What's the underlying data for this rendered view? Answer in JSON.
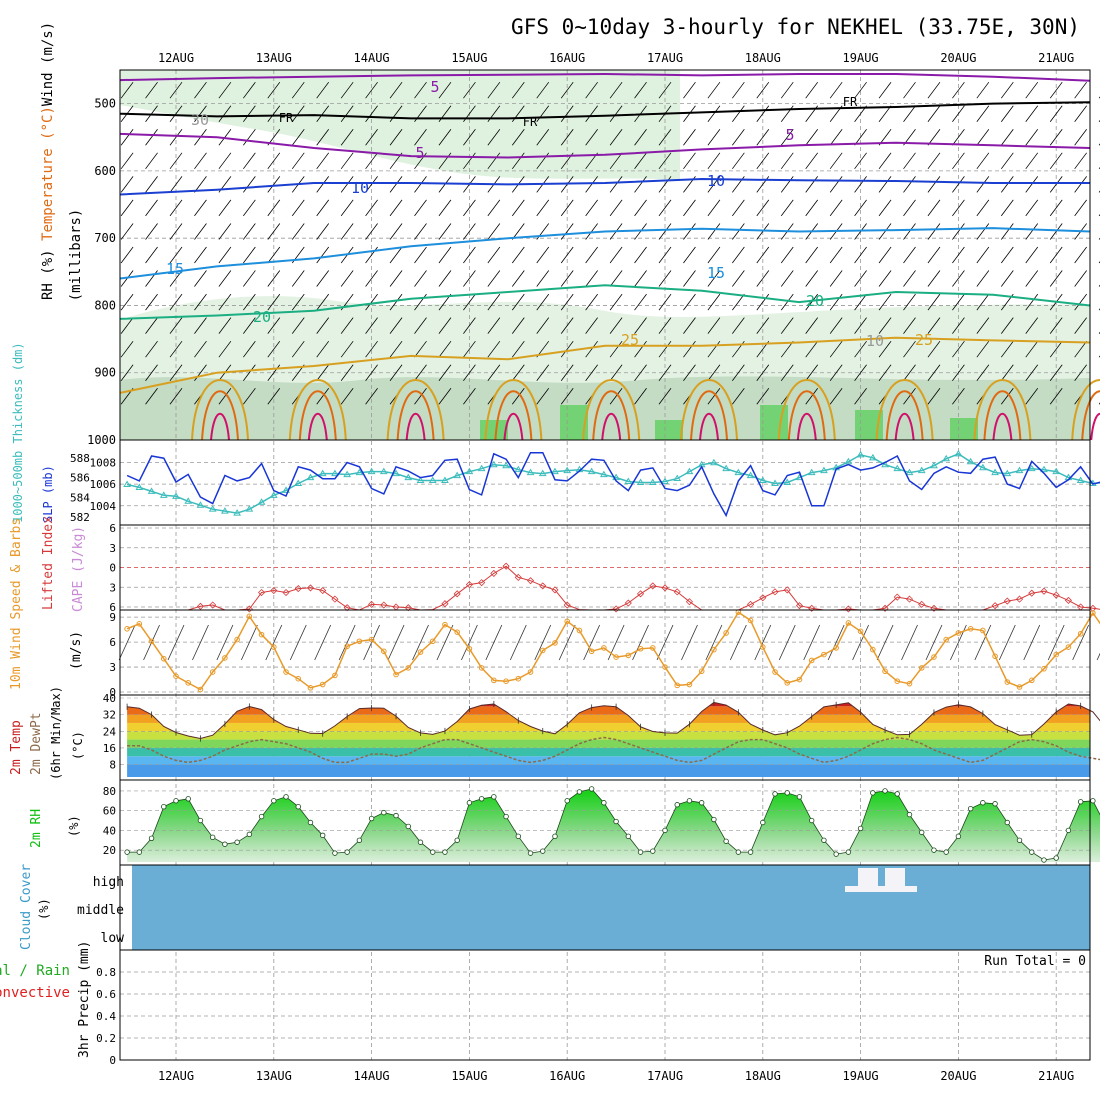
{
  "title": "GFS 0~10day 3-hourly for NEKHEL (33.75E, 30N)",
  "dates": [
    "12AUG",
    "13AUG",
    "14AUG",
    "15AUG",
    "16AUG",
    "17AUG",
    "18AUG",
    "19AUG",
    "20AUG",
    "21AUG"
  ],
  "run_total": "Run Total = 0",
  "colors": {
    "bg": "#ffffff",
    "grid": "#9a9a9a",
    "rh_fill": "#dcefdc",
    "rh_dark": "#a6c4a6",
    "freezing": "#000000",
    "t5": "#8a1aa8",
    "t10": "#1a3fd1",
    "t15": "#1e8fdc",
    "t20": "#1aae82",
    "t25": "#d8a020",
    "t30": "#e06a10",
    "t35": "#d0106a",
    "slp": "#1836d6",
    "thickness": "#3cbcbc",
    "lifted": "#d63a3a",
    "wind10m": "#e89a2a",
    "temp_hot": "#c81e1e",
    "dewpt_line": "#8c6a4a",
    "rh2m": "#10c010",
    "cloud": "#6aaed6",
    "precip_total": "#22aa22",
    "precip_conv": "#e02020"
  },
  "chart_data": [
    {
      "type": "line",
      "name": "upper-air",
      "panel_label_parts": [
        "RH (%)",
        "Temperature (°C)",
        "Wind (m/s)"
      ],
      "ylabel": "(millibars)",
      "yticks": [
        500,
        600,
        700,
        800,
        900,
        1000
      ],
      "ylim": [
        1000,
        450
      ],
      "contour_labels": [
        "5",
        "10",
        "15",
        "20",
        "25",
        "FR",
        "30",
        "10"
      ],
      "series": [
        {
          "name": "FR",
          "levels_mb": [
            515,
            519,
            517,
            522,
            522,
            518,
            513,
            508,
            505,
            500,
            498
          ]
        },
        {
          "name": "5",
          "levels_mb": [
            465,
            462,
            460,
            458,
            457,
            456,
            458,
            456,
            456,
            460,
            466
          ]
        },
        {
          "name": "5",
          "levels_mb": [
            545,
            550,
            566,
            578,
            580,
            576,
            568,
            562,
            558,
            562,
            566
          ]
        },
        {
          "name": "10",
          "levels_mb": [
            635,
            628,
            618,
            618,
            620,
            618,
            612,
            614,
            615,
            618,
            618
          ]
        },
        {
          "name": "15",
          "levels_mb": [
            760,
            742,
            730,
            712,
            700,
            690,
            686,
            690,
            688,
            685,
            690
          ]
        },
        {
          "name": "20",
          "levels_mb": [
            820,
            815,
            808,
            790,
            780,
            770,
            778,
            795,
            780,
            784,
            800
          ]
        },
        {
          "name": "25",
          "levels_mb": [
            930,
            900,
            890,
            875,
            880,
            860,
            860,
            855,
            848,
            852,
            855
          ]
        }
      ]
    },
    {
      "type": "line",
      "name": "slp-thickness",
      "ylabel_left": "1000~500mb Thickness (dm)",
      "ylabel_right": "SLP (mb)",
      "yticks_thickness": [
        582,
        584,
        586,
        588
      ],
      "yticks_slp": [
        1004,
        1006,
        1008
      ],
      "ylim_slp": [
        1002.5,
        1009.8
      ],
      "series": [
        {
          "name": "SLP (mb)",
          "values": [
            1006.8,
            1006.3,
            1008.6,
            1008.4,
            1006.2,
            1006.9,
            1004.8,
            1004.2,
            1006.8,
            1006.3,
            1006.6,
            1007.9,
            1005.4,
            1004.9,
            1007.6,
            1007.3,
            1006.5,
            1006.5,
            1008.0,
            1007.6,
            1005.6,
            1005.1,
            1007.6,
            1007.2,
            1006.6,
            1006.8,
            1008.2,
            1008.3,
            1005.5,
            1005.0,
            1008.8,
            1008.3,
            1006.6,
            1008.9,
            1008.9,
            1006.4,
            1006.3,
            1007.2,
            1008.3,
            1008.2,
            1006.3,
            1005.4,
            1007.3,
            1007.5,
            1005.6,
            1005.4,
            1005.9,
            1007.6,
            1005.1,
            1003.1,
            1006.3,
            1007.7,
            1005.4,
            1005.0,
            1006.8,
            1007.1,
            1004.0,
            1004.0,
            1007.4,
            1007.8,
            1007.3,
            1007.5,
            1008.0,
            1008.6,
            1006.3,
            1005.5,
            1007.0,
            1007.6,
            1007.1,
            1007.0,
            1008.3,
            1008.5,
            1006.0,
            1005.6,
            1008.1,
            1007.0,
            1005.7,
            1006.4,
            1007.6,
            1006.0,
            1006.3
          ]
        },
        {
          "name": "Thickness (dm)",
          "values": [
            585.3,
            585.0,
            584.6,
            584.2,
            584.1,
            583.6,
            583.2,
            582.8,
            582.6,
            582.4,
            582.8,
            583.5,
            584.2,
            584.7,
            585.4,
            586.0,
            586.4,
            586.4,
            586.3,
            586.5,
            586.6,
            586.6,
            586.4,
            586.0,
            585.7,
            585.7,
            585.7,
            586.2,
            586.6,
            586.9,
            587.3,
            587.2,
            586.8,
            586.5,
            586.4,
            586.6,
            586.7,
            586.8,
            586.6,
            586.3,
            586.0,
            585.6,
            585.5,
            585.5,
            585.6,
            585.9,
            586.6,
            587.3,
            587.5,
            586.9,
            586.5,
            586.2,
            585.7,
            585.4,
            585.5,
            586.0,
            586.5,
            586.7,
            587.0,
            587.6,
            588.3,
            588.0,
            587.3,
            586.9,
            586.5,
            586.7,
            587.2,
            587.9,
            588.4,
            587.6,
            587.0,
            586.5,
            586.4,
            586.7,
            586.9,
            586.8,
            586.6,
            586.0,
            585.7,
            585.4,
            585.5
          ]
        }
      ]
    },
    {
      "type": "line",
      "name": "lifted-index-cape",
      "ylabel": "Lifted Index",
      "ylabel2": "CAPE (J/kg)",
      "yticks": [
        -6,
        -3,
        0,
        3,
        6
      ],
      "ylim": [
        -6,
        6
      ],
      "series": [
        {
          "name": "Lifted Index",
          "values": [
            6.5,
            7,
            7,
            7,
            6.8,
            6.5,
            5.9,
            5.7,
            6.9,
            7,
            6.3,
            3.8,
            3.5,
            3.8,
            3.2,
            3.1,
            3.5,
            4.8,
            6.1,
            6.7,
            5.6,
            5.7,
            6,
            6.1,
            6.7,
            6.4,
            5.5,
            4,
            2.6,
            2.3,
            0.9,
            -0.2,
            1.5,
            2,
            2.8,
            3.4,
            5.7,
            6.4,
            6.5,
            6.7,
            6.3,
            5.4,
            4,
            2.8,
            3.1,
            3.7,
            5.2,
            6.6,
            6.7,
            6.6,
            6.5,
            5.6,
            4.6,
            3.7,
            3.4,
            5.8,
            6.2,
            6.5,
            6.5,
            6.3,
            6.8,
            6.9,
            6.2,
            4.5,
            4.8,
            5.6,
            6.2,
            6.7,
            6.5,
            6.6,
            6.5,
            5.8,
            5.1,
            4.8,
            3.9,
            3.6,
            4.2,
            5,
            6,
            6.2,
            6.5
          ]
        }
      ]
    },
    {
      "type": "line",
      "name": "wind-10m",
      "ylabel": "10m Wind Speed & Barbs",
      "yunit": "(m/s)",
      "yticks": [
        0,
        3,
        6,
        9
      ],
      "ylim": [
        0,
        9.5
      ],
      "series": [
        {
          "name": "10m Wind Speed",
          "values": [
            7.6,
            8.2,
            6.1,
            4.0,
            1.9,
            1.1,
            0.3,
            2.4,
            4.1,
            6.3,
            9.1,
            6.9,
            5.4,
            2.4,
            1.6,
            0.5,
            0.9,
            2.0,
            5.5,
            6.1,
            6.3,
            4.9,
            2.1,
            2.9,
            4.8,
            6.1,
            8.1,
            7.2,
            5.2,
            2.9,
            1.4,
            1.3,
            1.6,
            2.4,
            5.0,
            5.9,
            8.5,
            7.4,
            4.9,
            5.3,
            4.2,
            4.4,
            5.2,
            5.3,
            3.0,
            0.8,
            0.9,
            2.5,
            5.1,
            7.1,
            9.6,
            8.6,
            5.4,
            2.4,
            1.1,
            1.5,
            3.8,
            4.5,
            5.3,
            8.3,
            7.3,
            5.1,
            2.5,
            1.3,
            1.0,
            2.9,
            4.2,
            6.3,
            7.1,
            7.6,
            7.4,
            4.3,
            1.2,
            0.6,
            1.4,
            2.8,
            4.5,
            5.4,
            7.0,
            9.5,
            7.4
          ]
        }
      ]
    },
    {
      "type": "area",
      "name": "temp-dewpoint",
      "ylabel": "2m Temp",
      "ylabel2": "2m DewPt",
      "ylabel3": "(6hr Min/Max)",
      "yunit": "(°C)",
      "yticks": [
        8,
        16,
        24,
        32,
        40
      ],
      "ylim": [
        2,
        40
      ],
      "series": [
        {
          "name": "2m Temp",
          "values": [
            35.8,
            35.1,
            32,
            26.3,
            23.4,
            21.7,
            20.5,
            22.1,
            27.5,
            33.6,
            35.9,
            34.4,
            29.6,
            26.3,
            24.7,
            23,
            22.9,
            26.6,
            31.1,
            34.9,
            35.2,
            35.1,
            31.3,
            25.8,
            23.2,
            22.5,
            24.1,
            28.7,
            34.7,
            36.5,
            37.1,
            33.4,
            29.2,
            26.3,
            24.1,
            22.8,
            27.3,
            32.9,
            35.4,
            36.3,
            35.8,
            31.6,
            26.1,
            23.9,
            23.2,
            23.1,
            27.4,
            33.5,
            37.9,
            36.6,
            33.1,
            27.4,
            24.6,
            22.3,
            23.3,
            26.5,
            31.1,
            35.7,
            36.7,
            37.7,
            33.2,
            27.3,
            24.6,
            22.3,
            22.5,
            27.3,
            33,
            35.6,
            36.8,
            35.7,
            32.5,
            27.2,
            24.7,
            22.1,
            22.4,
            27.5,
            33.3,
            37.1,
            36.2,
            33.3,
            26.1
          ]
        },
        {
          "name": "2m DewPt",
          "values": [
            17,
            17,
            15,
            12,
            10,
            9,
            10,
            12,
            15,
            17,
            19,
            20,
            19,
            18,
            16,
            14,
            11,
            9,
            9,
            11,
            13,
            13,
            12,
            13,
            16,
            18,
            20,
            20,
            18,
            16,
            14,
            12,
            10,
            9,
            10,
            12,
            15,
            18,
            20,
            21,
            20,
            18,
            16,
            14,
            12,
            10,
            9,
            10,
            13,
            16,
            19,
            20,
            20,
            18,
            16,
            13,
            11,
            9,
            10,
            12,
            15,
            18,
            20,
            21,
            20,
            18,
            15,
            13,
            11,
            9,
            10,
            13,
            16,
            19,
            20,
            19,
            17,
            14,
            12,
            11,
            10
          ]
        }
      ]
    },
    {
      "type": "area",
      "name": "rh-2m",
      "ylabel": "2m RH",
      "yunit": "(%)",
      "yticks": [
        20,
        40,
        60,
        80
      ],
      "ylim": [
        8,
        88
      ],
      "series": [
        {
          "name": "2m RH",
          "values": [
            18,
            18,
            32,
            64,
            70,
            72,
            50,
            33,
            26,
            28,
            36,
            54,
            70,
            74,
            64,
            48,
            35,
            17,
            18,
            30,
            52,
            58,
            55,
            44,
            28,
            18,
            18,
            30,
            68,
            72,
            74,
            54,
            34,
            17,
            19,
            34,
            70,
            79,
            82,
            68,
            49,
            34,
            18,
            19,
            40,
            66,
            70,
            68,
            51,
            29,
            18,
            18,
            48,
            77,
            78,
            74,
            50,
            30,
            16,
            18,
            42,
            78,
            80,
            77,
            56,
            38,
            20,
            18,
            34,
            62,
            68,
            67,
            48,
            30,
            18,
            10,
            12,
            40,
            69,
            70,
            46
          ]
        }
      ]
    },
    {
      "type": "bar",
      "name": "cloud-cover",
      "ylabel": "Cloud Cover",
      "yunit": "(%)",
      "layers": [
        "high",
        "middle",
        "low"
      ],
      "series": [
        {
          "name": "high",
          "values": [
            0,
            0,
            0,
            0,
            0,
            0,
            0,
            0,
            0,
            0,
            0,
            0,
            0,
            0,
            0,
            0,
            0,
            0,
            0,
            0,
            0,
            0,
            0,
            0,
            0,
            0,
            0,
            0,
            0,
            0,
            0,
            0,
            0,
            0,
            0,
            0,
            0,
            0,
            0,
            0,
            0,
            0,
            0,
            0,
            0,
            0,
            0,
            0,
            0,
            0,
            0,
            0,
            0,
            0,
            0,
            0,
            0,
            0,
            0,
            0,
            0,
            0,
            0,
            0,
            0,
            0,
            0,
            0,
            0,
            0,
            0,
            0,
            0,
            0,
            0,
            0,
            0,
            0,
            0,
            0,
            0
          ]
        }
      ]
    },
    {
      "type": "bar",
      "name": "precip-3hr",
      "ylabel": "3hr Precip (mm)",
      "legend_parts": [
        "Total / Rain",
        "Convective"
      ],
      "yticks": [
        0,
        0.2,
        0.4,
        0.6,
        0.8
      ],
      "ylim": [
        0,
        1
      ],
      "series": [
        {
          "name": "Total / Rain",
          "values": [
            0,
            0,
            0,
            0,
            0,
            0,
            0,
            0,
            0,
            0,
            0,
            0,
            0,
            0,
            0,
            0,
            0,
            0,
            0,
            0,
            0,
            0,
            0,
            0,
            0,
            0,
            0,
            0,
            0,
            0,
            0,
            0,
            0,
            0,
            0,
            0,
            0,
            0,
            0,
            0,
            0,
            0,
            0,
            0,
            0,
            0,
            0,
            0,
            0,
            0,
            0,
            0,
            0,
            0,
            0,
            0,
            0,
            0,
            0,
            0,
            0,
            0,
            0,
            0,
            0,
            0,
            0,
            0,
            0,
            0,
            0,
            0,
            0,
            0,
            0,
            0,
            0,
            0,
            0,
            0,
            0
          ]
        },
        {
          "name": "Convective",
          "values": [
            0,
            0,
            0,
            0,
            0,
            0,
            0,
            0,
            0,
            0,
            0,
            0,
            0,
            0,
            0,
            0,
            0,
            0,
            0,
            0,
            0,
            0,
            0,
            0,
            0,
            0,
            0,
            0,
            0,
            0,
            0,
            0,
            0,
            0,
            0,
            0,
            0,
            0,
            0,
            0,
            0,
            0,
            0,
            0,
            0,
            0,
            0,
            0,
            0,
            0,
            0,
            0,
            0,
            0,
            0,
            0,
            0,
            0,
            0,
            0,
            0,
            0,
            0,
            0,
            0,
            0,
            0,
            0,
            0,
            0,
            0,
            0,
            0,
            0,
            0,
            0,
            0,
            0,
            0,
            0,
            0
          ]
        }
      ]
    }
  ]
}
